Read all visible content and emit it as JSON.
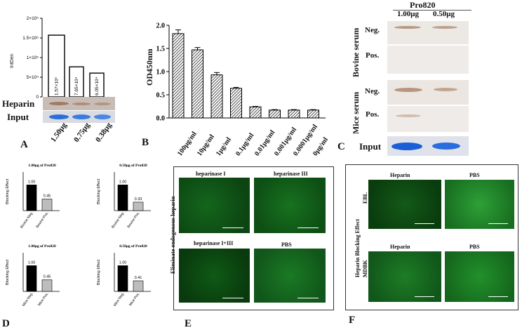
{
  "panels": {
    "A": {
      "letter": "A",
      "ylabel": "IntDen",
      "y_ticks": [
        "2×10⁵",
        "1.5×10⁵",
        "1×10⁵",
        "5×10⁴",
        "0"
      ],
      "rows": [
        "Heparin",
        "Input"
      ],
      "categories": [
        "1.50μg",
        "0.75μg",
        "0.38μg"
      ],
      "bar_labels": [
        "1.57×10⁵",
        "7.65×10⁴",
        "6.05×10⁴"
      ]
    },
    "B": {
      "letter": "B",
      "ylabel": "OD450nm",
      "y_ticks": [
        "2.0",
        "1.5",
        "1.0",
        "0.5",
        "0.0"
      ],
      "categories": [
        "100μg/ml",
        "10μg/ml",
        "1μg/ml",
        "0.1μg/ml",
        "0.01μg/ml",
        "0.001μg/ml",
        "0.0001μg/ml",
        "0μg/ml"
      ]
    },
    "C": {
      "letter": "C",
      "title": "Pro820",
      "columns": [
        "1.00μg",
        "0.50μg"
      ],
      "group_labels": [
        "Bovine serum",
        "Mice serum"
      ],
      "row_labels": [
        "Neg.",
        "Pos.",
        "Neg.",
        "Pos."
      ],
      "input_label": "Input"
    },
    "D": {
      "letter": "D",
      "ylabel": "Blocking Effect",
      "subcharts": [
        {
          "title": "1.00μg of Pro820",
          "cats": [
            "Bovine Neg.",
            "Bovine Pos."
          ],
          "labels": [
            "1.00",
            "0.45"
          ]
        },
        {
          "title": "0.50μg of Pro820",
          "cats": [
            "Bovine Neg.",
            "Bovine Pos."
          ],
          "labels": [
            "1.00",
            "0.33"
          ]
        },
        {
          "title": "1.00μg of Pro820",
          "cats": [
            "Mice Neg.",
            "Mice Pos."
          ],
          "labels": [
            "1.00",
            "0.45"
          ]
        },
        {
          "title": "0.50μg of Pro820",
          "cats": [
            "Mice Neg.",
            "Mice Pos."
          ],
          "labels": [
            "1.00",
            "0.41"
          ]
        }
      ]
    },
    "E": {
      "letter": "E",
      "side_label": "Eliminate endogenous heparin",
      "images": [
        "heparinase I",
        "heparinase III",
        "heparinase I+III",
        "PBS"
      ]
    },
    "F": {
      "letter": "F",
      "side_label": "Heparin Blocking Effect",
      "row_labels": [
        "EBL",
        "MDBK"
      ],
      "images": [
        "Heparin",
        "PBS",
        "Heparin",
        "PBS"
      ]
    }
  },
  "chart_data": [
    {
      "type": "bar",
      "panel": "A",
      "categories": [
        "1.50μg",
        "0.75μg",
        "0.38μg"
      ],
      "values": [
        157000,
        76500,
        60500
      ],
      "ylabel": "IntDen",
      "ylim": [
        0,
        200000
      ]
    },
    {
      "type": "bar",
      "panel": "B",
      "categories": [
        "100μg/ml",
        "10μg/ml",
        "1μg/ml",
        "0.1μg/ml",
        "0.01μg/ml",
        "0.001μg/ml",
        "0.0001μg/ml",
        "0μg/ml"
      ],
      "values": [
        1.82,
        1.47,
        0.93,
        0.64,
        0.24,
        0.17,
        0.17,
        0.17
      ],
      "errors": [
        0.08,
        0.05,
        0.05,
        0.02,
        0.01,
        0.01,
        0.01,
        0.01
      ],
      "ylabel": "OD450nm",
      "ylim": [
        0,
        2.0
      ]
    },
    {
      "type": "bar",
      "panel": "D1",
      "title": "1.00μg of Pro820",
      "categories": [
        "Bovine Neg.",
        "Bovine Pos."
      ],
      "values": [
        1.0,
        0.45
      ],
      "ylabel": "Blocking Effect",
      "ylim": [
        0,
        1.5
      ]
    },
    {
      "type": "bar",
      "panel": "D2",
      "title": "0.50μg of Pro820",
      "categories": [
        "Bovine Neg.",
        "Bovine Pos."
      ],
      "values": [
        1.0,
        0.33
      ],
      "ylabel": "Blocking Effect",
      "ylim": [
        0,
        1.5
      ]
    },
    {
      "type": "bar",
      "panel": "D3",
      "title": "1.00μg of Pro820",
      "categories": [
        "Mice Neg.",
        "Mice Pos."
      ],
      "values": [
        1.0,
        0.45
      ],
      "ylabel": "Blocking Effect",
      "ylim": [
        0,
        1.5
      ]
    },
    {
      "type": "bar",
      "panel": "D4",
      "title": "0.50μg of Pro820",
      "categories": [
        "Mice Neg.",
        "Mice Pos."
      ],
      "values": [
        1.0,
        0.41
      ],
      "ylabel": "Blocking Effect",
      "ylim": [
        0,
        1.5
      ]
    }
  ]
}
